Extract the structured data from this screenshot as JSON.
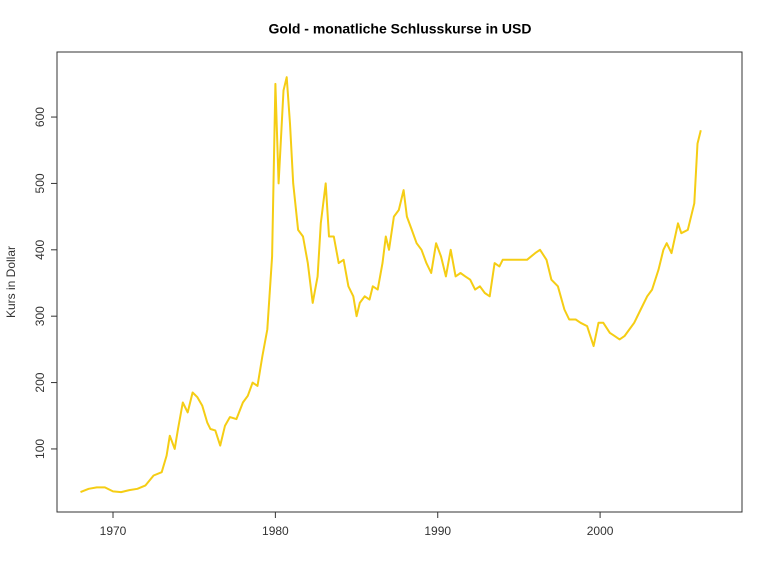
{
  "chart_data": {
    "type": "line",
    "title": "Gold  - monatliche Schlusskurse in USD",
    "ylabel": "Kurs in Dollar",
    "color": "#f5cd14",
    "x": [
      1968.0,
      1968.5,
      1969.0,
      1969.5,
      1970.0,
      1970.5,
      1971.0,
      1971.5,
      1972.0,
      1972.5,
      1973.0,
      1973.3,
      1973.5,
      1973.8,
      1974.0,
      1974.3,
      1974.6,
      1974.9,
      1975.2,
      1975.5,
      1975.8,
      1976.0,
      1976.3,
      1976.6,
      1976.9,
      1977.2,
      1977.6,
      1978.0,
      1978.3,
      1978.6,
      1978.9,
      1979.2,
      1979.5,
      1979.8,
      1980.0,
      1980.2,
      1980.5,
      1980.7,
      1980.9,
      1981.1,
      1981.4,
      1981.7,
      1982.0,
      1982.3,
      1982.6,
      1982.8,
      1983.1,
      1983.3,
      1983.6,
      1983.9,
      1984.2,
      1984.5,
      1984.8,
      1985.0,
      1985.2,
      1985.5,
      1985.8,
      1986.0,
      1986.3,
      1986.6,
      1986.8,
      1987.0,
      1987.3,
      1987.6,
      1987.9,
      1988.1,
      1988.4,
      1988.7,
      1989.0,
      1989.3,
      1989.6,
      1989.9,
      1990.2,
      1990.5,
      1990.8,
      1991.1,
      1991.4,
      1991.7,
      1992.0,
      1992.3,
      1992.6,
      1992.9,
      1993.2,
      1993.5,
      1993.8,
      1994.0,
      1994.5,
      1995.0,
      1995.5,
      1996.0,
      1996.3,
      1996.7,
      1997.0,
      1997.4,
      1997.8,
      1998.1,
      1998.5,
      1998.8,
      1999.2,
      1999.6,
      1999.9,
      2000.2,
      2000.6,
      2000.9,
      2001.2,
      2001.5,
      2001.8,
      2002.1,
      2002.5,
      2002.9,
      2003.2,
      2003.6,
      2003.9,
      2004.1,
      2004.4,
      2004.8,
      2005.0,
      2005.4,
      2005.8,
      2006.0,
      2006.2
    ],
    "values": [
      35,
      40,
      42,
      42,
      36,
      35,
      38,
      40,
      45,
      60,
      65,
      90,
      120,
      100,
      130,
      170,
      155,
      185,
      178,
      165,
      140,
      130,
      128,
      105,
      135,
      148,
      145,
      170,
      180,
      200,
      195,
      240,
      280,
      390,
      650,
      500,
      640,
      660,
      590,
      500,
      430,
      420,
      380,
      320,
      360,
      440,
      500,
      420,
      420,
      380,
      385,
      345,
      330,
      300,
      320,
      330,
      325,
      345,
      340,
      380,
      420,
      400,
      450,
      460,
      490,
      450,
      430,
      410,
      400,
      380,
      365,
      410,
      390,
      360,
      400,
      360,
      365,
      360,
      355,
      340,
      345,
      335,
      330,
      380,
      375,
      385,
      385,
      385,
      385,
      395,
      400,
      385,
      355,
      345,
      310,
      295,
      295,
      290,
      285,
      255,
      290,
      290,
      275,
      270,
      265,
      270,
      280,
      290,
      310,
      330,
      340,
      370,
      400,
      410,
      395,
      440,
      425,
      430,
      470,
      560,
      580
    ],
    "xlim": [
      1966.55,
      2008.74
    ],
    "xticks": [
      1970,
      1980,
      1990,
      2000
    ],
    "ylim": [
      5,
      698
    ],
    "yticks": [
      100,
      200,
      300,
      400,
      500,
      600
    ]
  }
}
